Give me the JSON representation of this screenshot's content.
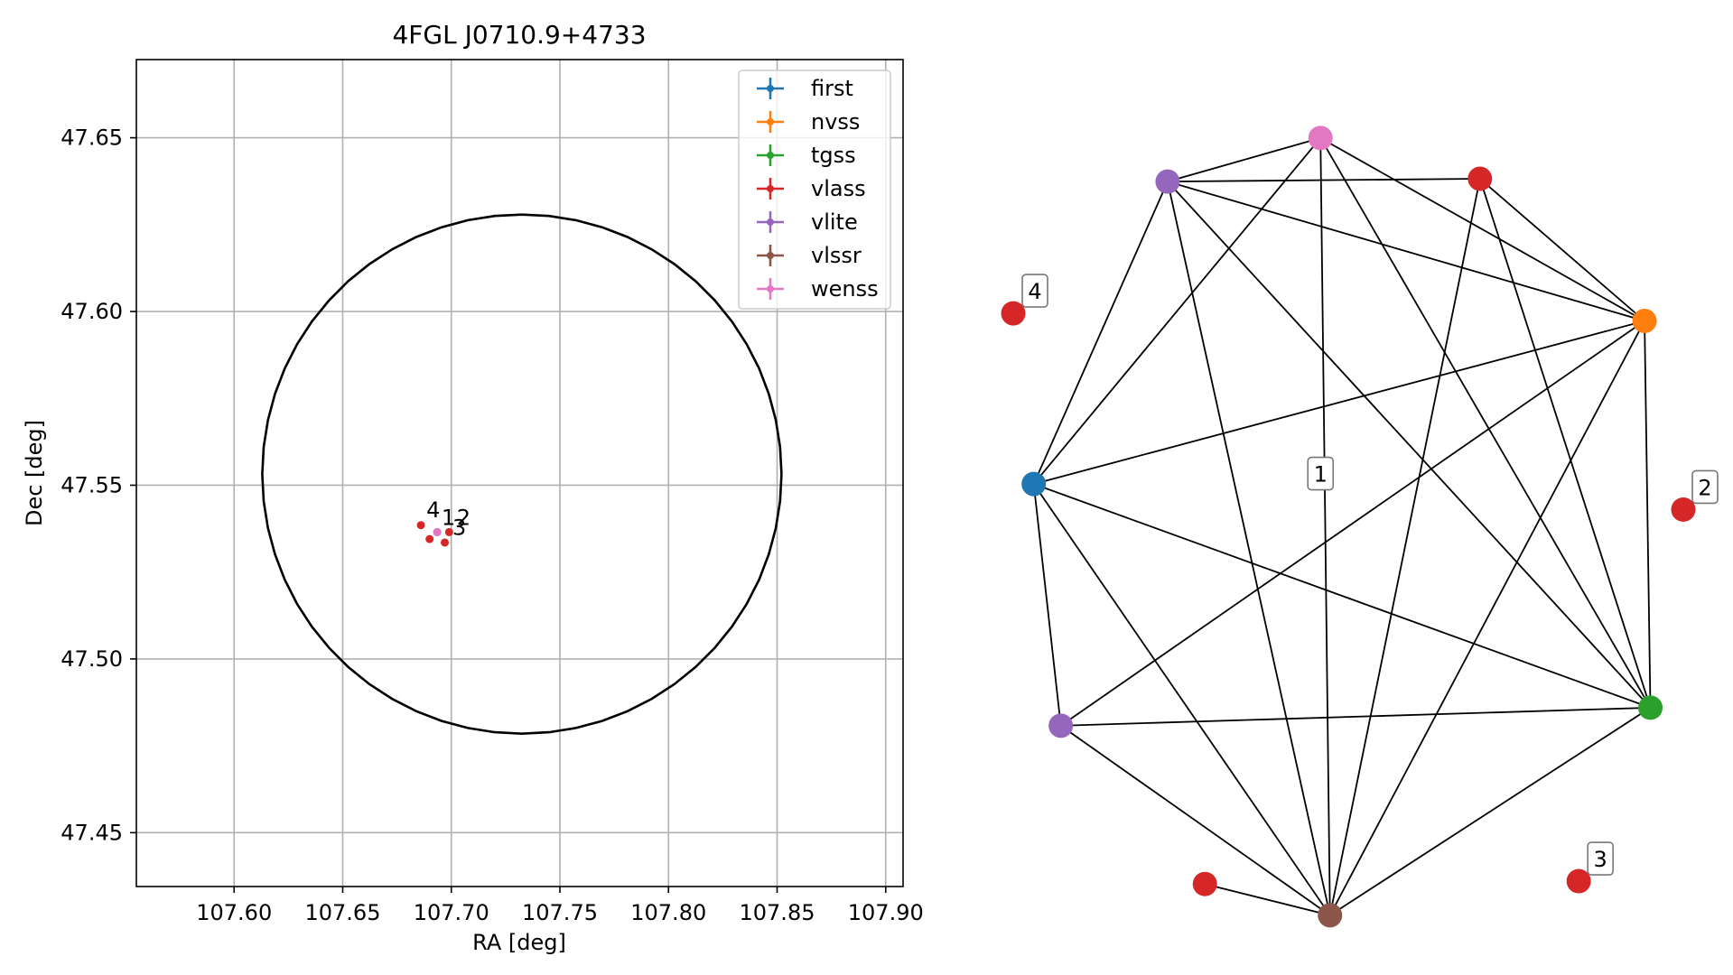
{
  "chart_data": [
    {
      "type": "scatter",
      "title": "4FGL J0710.9+4733",
      "xlabel": "RA [deg]",
      "ylabel": "Dec [deg]",
      "xlim": [
        107.555,
        107.908
      ],
      "ylim": [
        47.4345,
        47.6725
      ],
      "xticks": [
        107.6,
        107.65,
        107.7,
        107.75,
        107.8,
        107.85,
        107.9
      ],
      "xtick_labels": [
        "107.60",
        "107.65",
        "107.70",
        "107.75",
        "107.80",
        "107.85",
        "107.90"
      ],
      "yticks": [
        47.45,
        47.5,
        47.55,
        47.6,
        47.65
      ],
      "ytick_labels": [
        "47.45",
        "47.50",
        "47.55",
        "47.60",
        "47.65"
      ],
      "grid": true,
      "legend_position": "upper right",
      "series": [
        {
          "name": "first",
          "color": "#1f77b4",
          "points": []
        },
        {
          "name": "nvss",
          "color": "#ff7f0e",
          "points": []
        },
        {
          "name": "tgss",
          "color": "#2ca02c",
          "points": []
        },
        {
          "name": "vlass",
          "color": "#d62728",
          "points": [
            {
              "x": 107.686,
              "y": 47.5385
            },
            {
              "x": 107.699,
              "y": 47.5365
            },
            {
              "x": 107.697,
              "y": 47.5335
            },
            {
              "x": 107.69,
              "y": 47.5345
            }
          ]
        },
        {
          "name": "vlite",
          "color": "#9467bd",
          "points": [
            {
              "x": 107.6935,
              "y": 47.5365
            }
          ]
        },
        {
          "name": "vlssr",
          "color": "#8c564b",
          "points": []
        },
        {
          "name": "wenss",
          "color": "#e377c2",
          "points": [
            {
              "x": 107.6935,
              "y": 47.5365
            }
          ]
        }
      ],
      "circle": {
        "center": [
          107.7325,
          47.5532
        ],
        "radius_dec": 0.0747
      },
      "annotations": [
        {
          "text": "4",
          "x": 107.6885,
          "y": 47.5408
        },
        {
          "text": "1",
          "x": 107.6955,
          "y": 47.5385
        },
        {
          "text": "2",
          "x": 107.7025,
          "y": 47.5385
        },
        {
          "text": "3",
          "x": 107.7005,
          "y": 47.5357
        }
      ]
    },
    {
      "type": "network",
      "nodes": [
        {
          "id": "vlite_a",
          "color": "#9467bd",
          "x": 0.253,
          "y": 0.163
        },
        {
          "id": "wenss",
          "color": "#e377c2",
          "x": 0.462,
          "y": 0.117
        },
        {
          "id": "vlass_top",
          "color": "#d62728",
          "x": 0.68,
          "y": 0.16
        },
        {
          "id": "nvss",
          "color": "#ff7f0e",
          "x": 0.905,
          "y": 0.31
        },
        {
          "id": "first",
          "color": "#1f77b4",
          "x": 0.07,
          "y": 0.482
        },
        {
          "id": "tgss",
          "color": "#2ca02c",
          "x": 0.913,
          "y": 0.718
        },
        {
          "id": "vlite_b",
          "color": "#9467bd",
          "x": 0.107,
          "y": 0.737
        },
        {
          "id": "vlssr",
          "color": "#8c564b",
          "x": 0.475,
          "y": 0.937
        },
        {
          "id": "vlass_bl",
          "color": "#d62728",
          "x": 0.304,
          "y": 0.904
        },
        {
          "id": "vlass_4",
          "color": "#d62728",
          "x": 0.042,
          "y": 0.302,
          "label": "4"
        },
        {
          "id": "vlass_2",
          "color": "#d62728",
          "x": 0.958,
          "y": 0.509,
          "label": "2"
        },
        {
          "id": "vlass_3",
          "color": "#d62728",
          "x": 0.815,
          "y": 0.901,
          "label": "3"
        }
      ],
      "edges": [
        [
          "vlite_a",
          "wenss"
        ],
        [
          "vlite_a",
          "vlass_top"
        ],
        [
          "vlite_a",
          "nvss"
        ],
        [
          "vlite_a",
          "tgss"
        ],
        [
          "vlite_a",
          "vlssr"
        ],
        [
          "vlite_a",
          "first"
        ],
        [
          "wenss",
          "first"
        ],
        [
          "wenss",
          "nvss"
        ],
        [
          "wenss",
          "tgss"
        ],
        [
          "wenss",
          "vlssr"
        ],
        [
          "vlass_top",
          "nvss"
        ],
        [
          "vlass_top",
          "tgss"
        ],
        [
          "vlass_top",
          "vlssr"
        ],
        [
          "nvss",
          "tgss"
        ],
        [
          "nvss",
          "first"
        ],
        [
          "nvss",
          "vlite_b"
        ],
        [
          "nvss",
          "vlssr"
        ],
        [
          "first",
          "tgss"
        ],
        [
          "first",
          "vlite_b"
        ],
        [
          "first",
          "vlssr"
        ],
        [
          "tgss",
          "vlite_b"
        ],
        [
          "tgss",
          "vlssr"
        ],
        [
          "vlite_b",
          "vlssr"
        ],
        [
          "vlssr",
          "vlass_bl"
        ]
      ],
      "component_labels": [
        {
          "text": "1",
          "x": 0.462,
          "y": 0.472
        }
      ]
    }
  ]
}
